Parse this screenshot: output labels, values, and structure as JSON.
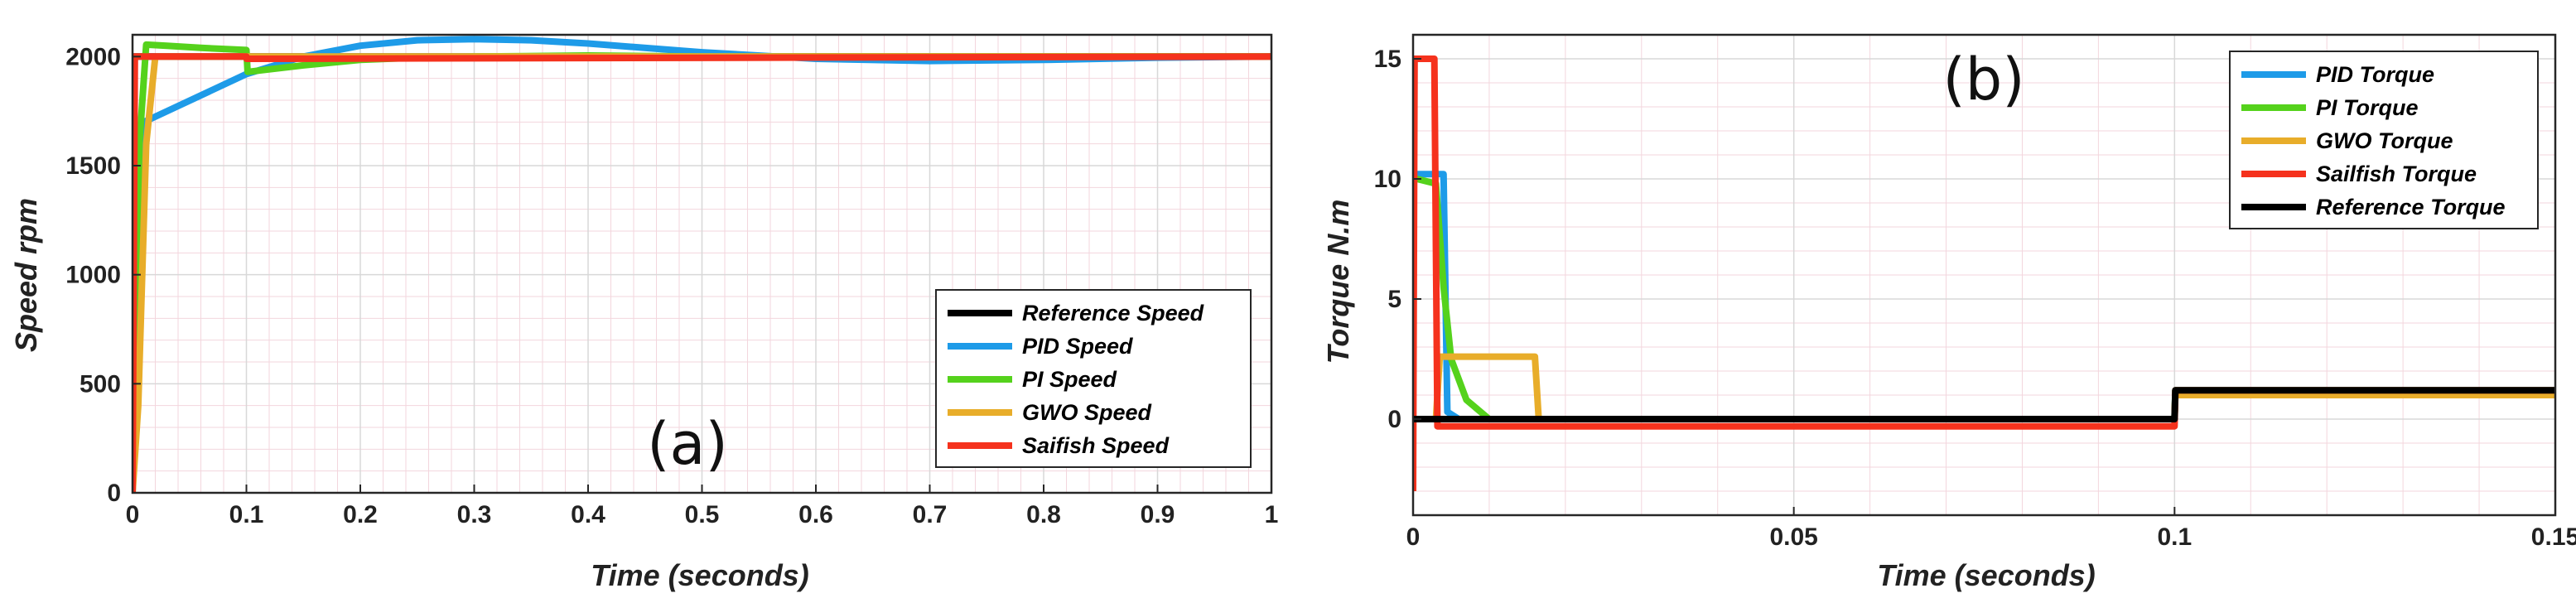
{
  "chart_data": [
    {
      "type": "line",
      "panel_label": "(a)",
      "xlabel": "Time (seconds)",
      "ylabel": "Speed rpm",
      "xlim": [
        0,
        1
      ],
      "ylim": [
        0,
        2100
      ],
      "xticks": [
        0,
        0.1,
        0.2,
        0.3,
        0.4,
        0.5,
        0.6,
        0.7,
        0.8,
        0.9,
        1
      ],
      "xtick_labels": [
        "0",
        "0.1",
        "0.2",
        "0.3",
        "0.4",
        "0.5",
        "0.6",
        "0.7",
        "0.8",
        "0.9",
        "1"
      ],
      "yticks": [
        0,
        500,
        1000,
        1500,
        2000
      ],
      "ytick_labels": [
        "0",
        "500",
        "1000",
        "1500",
        "2000"
      ],
      "grid": true,
      "legend_position": "bottom-right",
      "series": [
        {
          "name": "Reference Speed",
          "color": "#000000",
          "x": [
            0,
            0.001,
            1
          ],
          "y": [
            0,
            2000,
            2000
          ]
        },
        {
          "name": "PID Speed",
          "color": "#1e9be8",
          "x": [
            0,
            0.003,
            0.01,
            0.1,
            0.15,
            0.2,
            0.25,
            0.3,
            0.35,
            0.4,
            0.5,
            0.6,
            0.7,
            0.8,
            0.9,
            1.0
          ],
          "y": [
            0,
            1000,
            1700,
            1920,
            2000,
            2050,
            2075,
            2080,
            2075,
            2060,
            2020,
            1990,
            1980,
            1985,
            1995,
            2000
          ]
        },
        {
          "name": "PI Speed",
          "color": "#55d21c",
          "x": [
            0,
            0.006,
            0.012,
            0.03,
            0.06,
            0.1,
            0.101,
            0.15,
            0.2,
            0.25,
            0.3,
            0.4,
            0.5,
            1.0
          ],
          "y": [
            0,
            1600,
            2055,
            2050,
            2040,
            2030,
            1930,
            1960,
            1985,
            1995,
            2000,
            2005,
            2000,
            2000
          ]
        },
        {
          "name": "GWO Speed",
          "color": "#e8ad2a",
          "x": [
            0,
            0.005,
            0.012,
            0.02,
            0.1,
            1.0
          ],
          "y": [
            0,
            400,
            1600,
            2000,
            2000,
            2000
          ]
        },
        {
          "name": "Saifish Speed",
          "color": "#f5321d",
          "x": [
            0,
            0.002,
            0.1,
            0.1001,
            1.0
          ],
          "y": [
            0,
            2000,
            2000,
            1990,
            2000
          ]
        }
      ]
    },
    {
      "type": "line",
      "panel_label": "(b)",
      "xlabel": "Time (seconds)",
      "ylabel": "Torque N.m",
      "xlim": [
        0,
        0.15
      ],
      "ylim": [
        -4,
        16
      ],
      "xticks": [
        0,
        0.05,
        0.1,
        0.15
      ],
      "xtick_labels": [
        "0",
        "0.05",
        "0.1",
        "0.15"
      ],
      "yticks": [
        0,
        5,
        10,
        15
      ],
      "ytick_labels": [
        "0",
        "5",
        "10",
        "15"
      ],
      "grid": true,
      "legend_position": "top-right",
      "series": [
        {
          "name": "PID Torque",
          "color": "#1e9be8",
          "x": [
            0,
            0.0005,
            0.004,
            0.0045,
            0.006,
            0.1,
            0.1001,
            0.15
          ],
          "y": [
            10,
            10.2,
            10.2,
            0.3,
            0.0,
            0.0,
            1.2,
            1.2
          ]
        },
        {
          "name": "PI Torque",
          "color": "#55d21c",
          "x": [
            0,
            0.0005,
            0.003,
            0.004,
            0.005,
            0.007,
            0.01,
            0.1,
            0.1001,
            0.15
          ],
          "y": [
            10,
            10,
            9.8,
            5.5,
            2.5,
            0.8,
            0.0,
            0.0,
            1.2,
            1.2
          ]
        },
        {
          "name": "GWO Torque",
          "color": "#e8ad2a",
          "x": [
            0,
            0.003,
            0.0035,
            0.016,
            0.0165,
            0.1,
            0.1001,
            0.15
          ],
          "y": [
            0,
            0,
            2.6,
            2.6,
            0.0,
            0.0,
            1.0,
            1.0
          ]
        },
        {
          "name": "Sailfish Torque",
          "color": "#f5321d",
          "x": [
            0,
            0.0002,
            0.0006,
            0.0028,
            0.0032,
            0.1,
            0.1001,
            0.15
          ],
          "y": [
            -3,
            15,
            15,
            15,
            -0.3,
            -0.3,
            1.2,
            1.2
          ]
        },
        {
          "name": "Reference Torque",
          "color": "#000000",
          "x": [
            0,
            0.1,
            0.1001,
            0.15
          ],
          "y": [
            0,
            0,
            1.2,
            1.2
          ]
        }
      ]
    }
  ]
}
